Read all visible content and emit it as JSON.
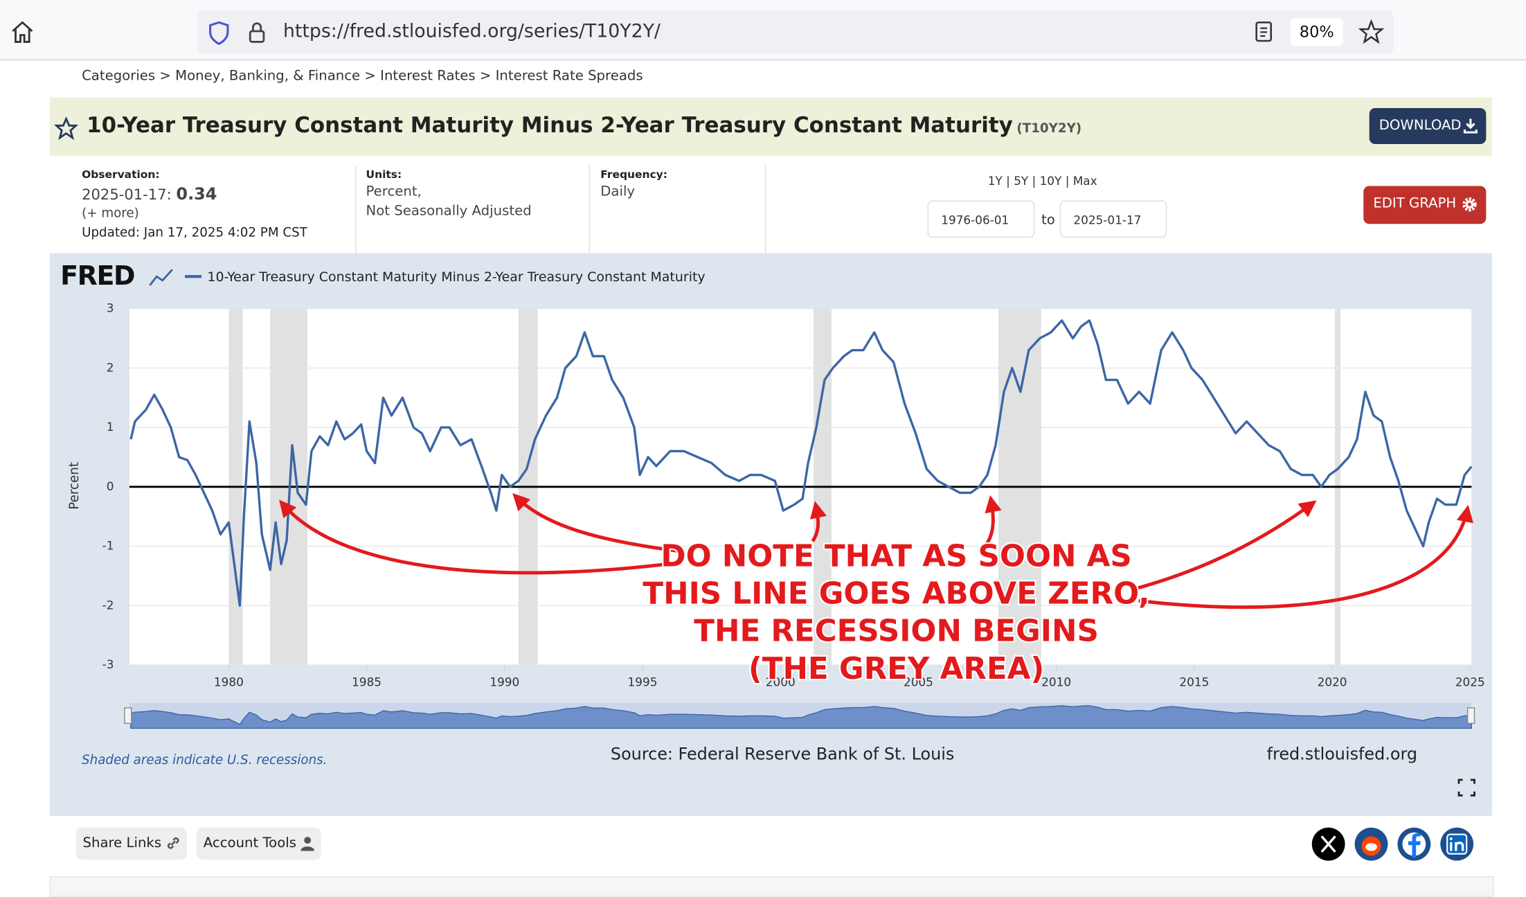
{
  "browser": {
    "url": "https://fred.stlouisfed.org/series/T10Y2Y/",
    "zoom": "80%"
  },
  "breadcrumb": "Categories > Money, Banking, & Finance > Interest Rates > Interest Rate Spreads",
  "header": {
    "title": "10-Year Treasury Constant Maturity Minus 2-Year Treasury Constant Maturity",
    "code": "(T10Y2Y)",
    "download": "DOWNLOAD"
  },
  "info": {
    "observation_label": "Observation:",
    "observation_date": "2025-01-17:",
    "observation_value": "0.34",
    "more": "(+ more)",
    "updated": "Updated: Jan 17, 2025 4:02 PM CST",
    "units_label": "Units:",
    "units_1": "Percent,",
    "units_2": "Not Seasonally Adjusted",
    "frequency_label": "Frequency:",
    "frequency": "Daily",
    "ranges": "1Y | 5Y | 10Y | Max",
    "start_date": "1976-06-01",
    "to": "to",
    "end_date": "2025-01-17",
    "edit": "EDIT GRAPH"
  },
  "chart_data": {
    "type": "line",
    "logo": "FRED",
    "y_label": "Percent",
    "xlim": [
      1976.4,
      2025.05
    ],
    "xticks": [
      1980,
      1985,
      1990,
      1995,
      2000,
      2005,
      2010,
      2015,
      2020,
      2025
    ],
    "ylim": [
      -3,
      3
    ],
    "yticks": [
      -3,
      -2,
      -1,
      0,
      1,
      2,
      3
    ],
    "grid": true,
    "reference_line": 0,
    "recessions": [
      {
        "start": 1980.0,
        "end": 1980.5
      },
      {
        "start": 1981.5,
        "end": 1982.85
      },
      {
        "start": 1990.5,
        "end": 1991.2
      },
      {
        "start": 2001.2,
        "end": 2001.85
      },
      {
        "start": 2007.9,
        "end": 2009.45
      },
      {
        "start": 2020.1,
        "end": 2020.3
      }
    ],
    "series": [
      {
        "name": "10-Year Treasury Constant Maturity Minus 2-Year Treasury Constant Maturity",
        "color": "#3c66a5",
        "x": [
          1976.45,
          1976.6,
          1977.0,
          1977.3,
          1977.6,
          1977.9,
          1978.2,
          1978.5,
          1978.8,
          1979.1,
          1979.4,
          1979.7,
          1980.0,
          1980.2,
          1980.4,
          1980.55,
          1980.75,
          1981.0,
          1981.2,
          1981.5,
          1981.7,
          1981.9,
          1982.1,
          1982.3,
          1982.5,
          1982.8,
          1983.0,
          1983.3,
          1983.6,
          1983.9,
          1984.2,
          1984.5,
          1984.8,
          1985.0,
          1985.3,
          1985.6,
          1985.9,
          1986.3,
          1986.7,
          1987.0,
          1987.3,
          1987.7,
          1988.0,
          1988.4,
          1988.8,
          1989.2,
          1989.5,
          1989.7,
          1989.9,
          1990.2,
          1990.5,
          1990.8,
          1991.1,
          1991.5,
          1991.9,
          1992.2,
          1992.6,
          1992.9,
          1993.2,
          1993.6,
          1993.9,
          1994.3,
          1994.7,
          1994.9,
          1995.2,
          1995.5,
          1996.0,
          1996.5,
          1997.0,
          1997.5,
          1998.0,
          1998.5,
          1998.9,
          1999.3,
          1999.8,
          2000.1,
          2000.5,
          2000.8,
          2001.0,
          2001.3,
          2001.6,
          2001.9,
          2002.3,
          2002.6,
          2003.0,
          2003.4,
          2003.7,
          2004.1,
          2004.5,
          2004.9,
          2005.3,
          2005.7,
          2006.1,
          2006.5,
          2006.9,
          2007.2,
          2007.5,
          2007.8,
          2008.1,
          2008.4,
          2008.7,
          2009.0,
          2009.4,
          2009.8,
          2010.2,
          2010.6,
          2010.9,
          2011.2,
          2011.5,
          2011.8,
          2012.2,
          2012.6,
          2013.0,
          2013.4,
          2013.8,
          2014.2,
          2014.6,
          2014.9,
          2015.3,
          2015.7,
          2016.1,
          2016.5,
          2016.9,
          2017.3,
          2017.7,
          2018.1,
          2018.5,
          2018.9,
          2019.3,
          2019.6,
          2019.9,
          2020.2,
          2020.6,
          2020.9,
          2021.2,
          2021.5,
          2021.8,
          2022.1,
          2022.4,
          2022.7,
          2023.0,
          2023.3,
          2023.5,
          2023.8,
          2024.1,
          2024.5,
          2024.8,
          2025.05
        ],
        "values": [
          0.8,
          1.1,
          1.3,
          1.55,
          1.3,
          1.0,
          0.5,
          0.45,
          0.2,
          -0.1,
          -0.4,
          -0.8,
          -0.6,
          -1.3,
          -2.0,
          -0.5,
          1.1,
          0.4,
          -0.8,
          -1.4,
          -0.6,
          -1.3,
          -0.9,
          0.7,
          -0.1,
          -0.3,
          0.6,
          0.85,
          0.7,
          1.1,
          0.8,
          0.9,
          1.05,
          0.6,
          0.4,
          1.5,
          1.2,
          1.5,
          1.0,
          0.9,
          0.6,
          1.0,
          1.0,
          0.7,
          0.8,
          0.3,
          -0.1,
          -0.4,
          0.2,
          0.0,
          0.1,
          0.3,
          0.8,
          1.2,
          1.5,
          2.0,
          2.2,
          2.6,
          2.2,
          2.2,
          1.8,
          1.5,
          1.0,
          0.2,
          0.5,
          0.35,
          0.6,
          0.6,
          0.5,
          0.4,
          0.2,
          0.1,
          0.2,
          0.2,
          0.1,
          -0.4,
          -0.3,
          -0.2,
          0.4,
          1.0,
          1.8,
          2.0,
          2.2,
          2.3,
          2.3,
          2.6,
          2.3,
          2.1,
          1.4,
          0.9,
          0.3,
          0.1,
          0.0,
          -0.1,
          -0.1,
          0.0,
          0.2,
          0.7,
          1.6,
          2.0,
          1.6,
          2.3,
          2.5,
          2.6,
          2.8,
          2.5,
          2.7,
          2.8,
          2.4,
          1.8,
          1.8,
          1.4,
          1.6,
          1.4,
          2.3,
          2.6,
          2.3,
          2.0,
          1.8,
          1.5,
          1.2,
          0.9,
          1.1,
          0.9,
          0.7,
          0.6,
          0.3,
          0.2,
          0.2,
          0.0,
          0.2,
          0.3,
          0.5,
          0.8,
          1.6,
          1.2,
          1.1,
          0.5,
          0.1,
          -0.4,
          -0.7,
          -1.0,
          -0.6,
          -0.2,
          -0.3,
          -0.3,
          0.2,
          0.34
        ]
      }
    ]
  },
  "annotation": [
    "DO NOTE THAT AS SOON AS",
    "THIS LINE GOES ABOVE ZERO,",
    "THE RECESSION BEGINS",
    "(THE GREY AREA)"
  ],
  "footer": {
    "note": "Shaded areas indicate U.S. recessions.",
    "source": "Source: Federal Reserve Bank of St. Louis",
    "site": "fred.stlouisfed.org",
    "share": "Share Links",
    "account": "Account Tools"
  }
}
